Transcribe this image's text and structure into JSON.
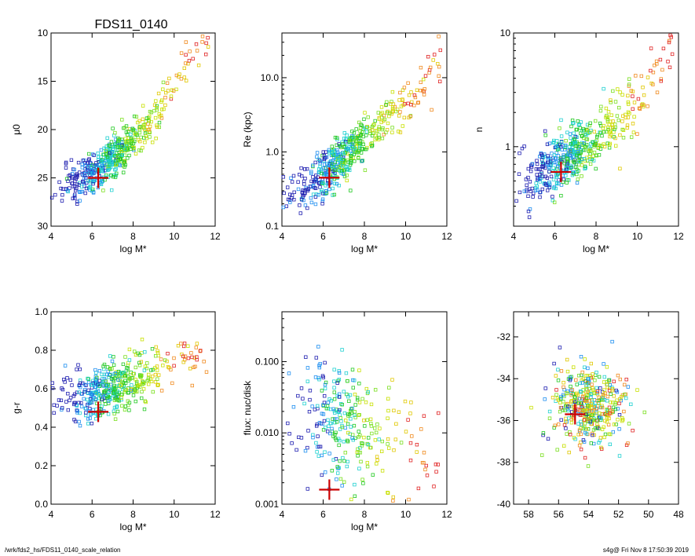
{
  "title": "FDS11_0140",
  "footer": {
    "left": "/wrk/fds2_hs/FDS11_0140_scale_relation",
    "right": "s4g@  Fri Nov  8 17:50:39 2019"
  },
  "colors": [
    "#1f1fb0",
    "#1f8ff0",
    "#1fd0d0",
    "#22c922",
    "#7adf1f",
    "#c8e000",
    "#e0c800",
    "#f08a1f",
    "#e02424"
  ],
  "marker_color": "#cc0000",
  "chart_data": [
    {
      "id": "mu0",
      "type": "scatter",
      "title": "FDS11_0140",
      "xlabel": "log M*",
      "ylabel": "μ0",
      "xlim": [
        4,
        12
      ],
      "ylim": [
        30,
        10
      ],
      "yscale": "linear",
      "y_inverted": true,
      "xticks": [
        4,
        6,
        8,
        10,
        12
      ],
      "yticks": [
        10,
        15,
        20,
        25,
        30
      ],
      "ytick_labels": [
        "10",
        "15",
        "20",
        "25",
        "30"
      ],
      "highlight": {
        "x": 6.3,
        "y": 25.0
      },
      "trend": {
        "points": [
          [
            5.2,
            25.6
          ],
          [
            6,
            24.6
          ],
          [
            7,
            23.0
          ],
          [
            8,
            21.2
          ],
          [
            9,
            18.8
          ],
          [
            10,
            15.2
          ],
          [
            11,
            12.0
          ],
          [
            11.8,
            10.0
          ]
        ],
        "scatter": 1.1
      },
      "n_points": 520,
      "seed": 11
    },
    {
      "id": "re",
      "type": "scatter",
      "xlabel": "log M*",
      "ylabel": "Re (kpc)",
      "xlim": [
        4,
        12
      ],
      "ylim": [
        0.1,
        40
      ],
      "yscale": "log",
      "xticks": [
        4,
        6,
        8,
        10,
        12
      ],
      "yticks": [
        0.1,
        1.0,
        10.0
      ],
      "ytick_labels": [
        "0.1",
        "1.0",
        "10.0"
      ],
      "highlight": {
        "x": 6.3,
        "y": 0.45
      },
      "trend": {
        "points": [
          [
            5,
            0.32
          ],
          [
            6,
            0.45
          ],
          [
            7,
            0.85
          ],
          [
            8,
            1.5
          ],
          [
            9,
            2.6
          ],
          [
            10,
            4.2
          ],
          [
            11,
            7.5
          ],
          [
            11.8,
            16
          ]
        ],
        "scatter": 0.16
      },
      "n_points": 520,
      "seed": 23
    },
    {
      "id": "n",
      "type": "scatter",
      "xlabel": "log M*",
      "ylabel": "n",
      "xlim": [
        4,
        12
      ],
      "ylim": [
        0.2,
        10
      ],
      "yscale": "log",
      "xticks": [
        4,
        6,
        8,
        10,
        12
      ],
      "yticks": [
        1,
        10
      ],
      "ytick_labels": [
        "1",
        "10"
      ],
      "highlight": {
        "x": 6.3,
        "y": 0.6
      },
      "trend": {
        "points": [
          [
            5,
            0.55
          ],
          [
            6,
            0.68
          ],
          [
            7,
            0.9
          ],
          [
            8,
            1.15
          ],
          [
            9,
            1.6
          ],
          [
            10,
            2.5
          ],
          [
            11,
            4.0
          ],
          [
            11.8,
            6.0
          ]
        ],
        "scatter": 0.14
      },
      "n_points": 520,
      "seed": 37
    },
    {
      "id": "gr",
      "type": "scatter",
      "xlabel": "log M*",
      "ylabel": "g-r",
      "xlim": [
        4,
        12
      ],
      "ylim": [
        0,
        1.0
      ],
      "yscale": "linear",
      "xticks": [
        4,
        6,
        8,
        10,
        12
      ],
      "yticks": [
        0.0,
        0.2,
        0.4,
        0.6,
        0.8,
        1.0
      ],
      "ytick_labels": [
        "0.0",
        "0.2",
        "0.4",
        "0.6",
        "0.8",
        "1.0"
      ],
      "highlight": {
        "x": 6.3,
        "y": 0.48
      },
      "trend": {
        "points": [
          [
            5,
            0.55
          ],
          [
            6,
            0.56
          ],
          [
            7,
            0.6
          ],
          [
            8,
            0.64
          ],
          [
            9,
            0.67
          ],
          [
            10,
            0.72
          ],
          [
            11,
            0.78
          ],
          [
            11.8,
            0.82
          ]
        ],
        "scatter": 0.07
      },
      "n_points": 460,
      "seed": 53
    },
    {
      "id": "flux",
      "type": "scatter",
      "xlabel": "log M*",
      "ylabel": "flux: nuc/disk",
      "xlim": [
        4,
        12
      ],
      "ylim": [
        0.001,
        0.5
      ],
      "yscale": "log",
      "xticks": [
        4,
        6,
        8,
        10,
        12
      ],
      "yticks": [
        0.001,
        0.01,
        0.1
      ],
      "ytick_labels": [
        "0.001",
        "0.010",
        "0.100"
      ],
      "highlight": {
        "x": 6.3,
        "y": 0.0016
      },
      "trend": {
        "points": [
          [
            5,
            0.02
          ],
          [
            6,
            0.018
          ],
          [
            7,
            0.014
          ],
          [
            8,
            0.01
          ],
          [
            9,
            0.008
          ],
          [
            10,
            0.009
          ],
          [
            11,
            0.006
          ]
        ],
        "scatter": 0.42
      },
      "n_points": 300,
      "seed": 71
    },
    {
      "id": "sky",
      "type": "scatter",
      "xlabel": "",
      "ylabel": "",
      "xlim": [
        59,
        48
      ],
      "ylim": [
        -40,
        -30.8
      ],
      "yscale": "linear",
      "xticks": [
        58,
        56,
        54,
        52,
        50,
        48
      ],
      "yticks": [
        -40,
        -38,
        -36,
        -34,
        -32
      ],
      "ytick_labels": [
        "-40",
        "-38",
        "-36",
        "-34",
        "-32"
      ],
      "highlight": {
        "x": 54.9,
        "y": -35.7
      },
      "cluster": {
        "cx": 54,
        "cy": -35.3,
        "sx": 2.3,
        "sy": 1.1
      },
      "n_points": 420,
      "seed": 97
    }
  ]
}
